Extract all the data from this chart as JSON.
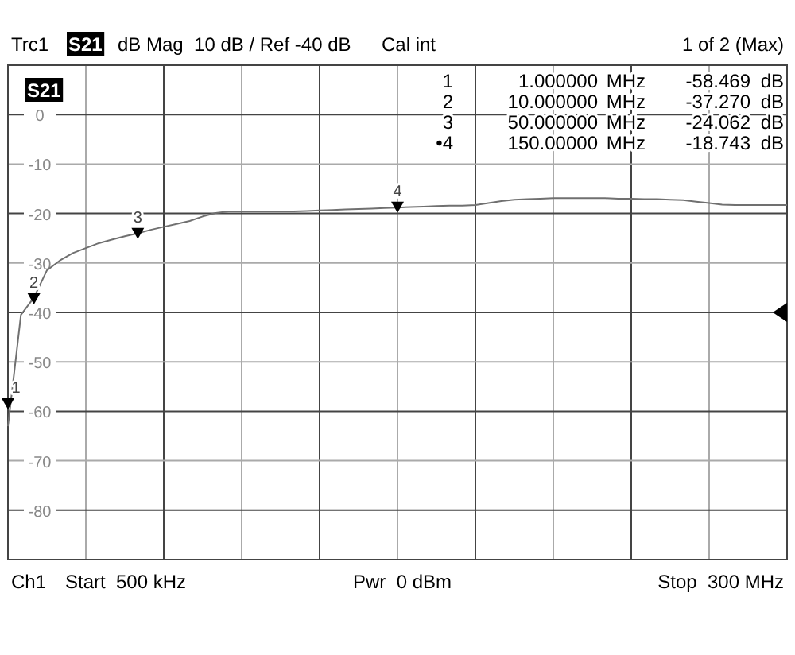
{
  "chart_data": {
    "type": "line",
    "categories": [
      null,
      null,
      null,
      null,
      null,
      null,
      null,
      null,
      null,
      null,
      null,
      null,
      null,
      null,
      null,
      null,
      null,
      null,
      null,
      null,
      null,
      null,
      null,
      null,
      null,
      null,
      null,
      null,
      null,
      null,
      null,
      null,
      null,
      null,
      null,
      null,
      null,
      null,
      null,
      null,
      null,
      null,
      null,
      null,
      null,
      null,
      null,
      null,
      null,
      null,
      null,
      null,
      null,
      null,
      null,
      null,
      null,
      null,
      null,
      null,
      null
    ],
    "series": [
      {
        "color": "#707070",
        "values": [
          -63,
          -40.5,
          -37,
          -31.5,
          -29.5,
          -28,
          -27,
          -26,
          -25.3,
          -24.6,
          -24,
          -23.3,
          -22.7,
          -22.1,
          -21.5,
          -20.6,
          -19.9,
          -19.6,
          -19.6,
          -19.6,
          -19.6,
          -19.6,
          -19.6,
          -19.5,
          -19.4,
          -19.3,
          -19.2,
          -19.1,
          -19,
          -18.9,
          -18.8,
          -18.7,
          -18.6,
          -18.5,
          -18.4,
          -18.4,
          -18.3,
          -17.9,
          -17.5,
          -17.2,
          -17.1,
          -17,
          -16.9,
          -16.9,
          -16.9,
          -16.9,
          -16.9,
          -17,
          -17,
          -17.1,
          -17.1,
          -17.2,
          -17.3,
          -17.6,
          -17.9,
          -18.2,
          -18.3,
          -18.3,
          -18.3,
          -18.3,
          -18.3
        ]
      },
      {
        "type": "scatter",
        "color": "#000000",
        "marker": "triangle",
        "values": [
          -58.469,
          null,
          -37.27,
          null,
          null,
          null,
          null,
          null,
          null,
          null,
          -24.062,
          null,
          null,
          null,
          null,
          null,
          null,
          null,
          null,
          null,
          null,
          null,
          null,
          null,
          null,
          null,
          null,
          null,
          null,
          null,
          -18.743,
          null,
          null,
          null,
          null,
          null,
          null,
          null,
          null,
          null,
          null,
          null,
          null,
          null,
          null,
          null,
          null,
          null,
          null,
          null,
          null,
          null,
          null,
          null,
          null,
          null,
          null,
          null,
          null,
          null,
          null
        ]
      }
    ],
    "ylim": [
      -90,
      10
    ],
    "yticks": [
      {
        "value": 10,
        "label": null
      },
      0,
      -10,
      -20,
      -30,
      -40,
      -50,
      -60,
      -70,
      -80,
      {
        "value": -90,
        "label": null
      }
    ],
    "tick_labels": "y",
    "grid": true,
    "annotations": [
      "Trc1",
      "S21",
      "dB Mag  10 dB / Ref -40 dB",
      "Cal int",
      "1 of 2 (Max)",
      "S21",
      "Ch1",
      "Start  500 kHz",
      "Pwr  0 dBm",
      "Stop  300 MHz",
      "1  1.000000  MHz  -58.469  dB",
      "2  10.000000  MHz  -37.270  dB",
      "3  50.000000  MHz  -24.062  dB",
      "•4  150.00000  MHz  -18.743  dB",
      "1",
      "2",
      "3",
      "4"
    ]
  }
}
